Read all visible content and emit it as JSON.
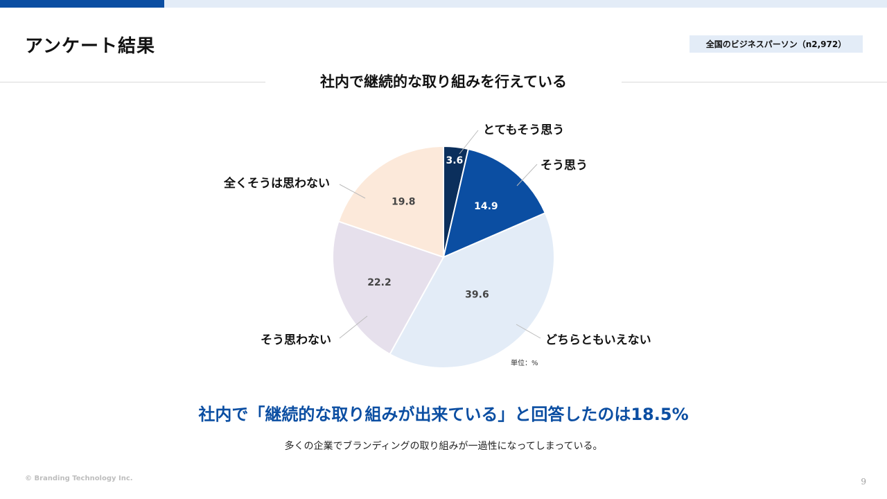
{
  "page": {
    "title": "アンケート結果",
    "sample_badge": "全国のビジネスパーソン（n2,972）",
    "headline": "社内で「継続的な取り組みが出来ている」と回答したのは18.5%",
    "subtext": "多くの企業でブランディングの取り組みが一過性になってしまっている。",
    "copyright": "© Branding Technology Inc.",
    "page_number": "9"
  },
  "chart_data": {
    "type": "pie",
    "title": "社内で継続的な取り組みを行えている",
    "unit_note": "単位：%",
    "slices": [
      {
        "label": "とてもそう思う",
        "value": 3.6,
        "color": "#0b2f5c",
        "text_color": "#ffffff"
      },
      {
        "label": "そう思う",
        "value": 14.9,
        "color": "#0b4ea2",
        "text_color": "#ffffff"
      },
      {
        "label": "どちらともいえない",
        "value": 39.6,
        "color": "#e3ecf7",
        "text_color": "#444444"
      },
      {
        "label": "そう思わない",
        "value": 22.2,
        "color": "#e6e0ec",
        "text_color": "#444444"
      },
      {
        "label": "全くそうは思わない",
        "value": 19.8,
        "color": "#fce9da",
        "text_color": "#444444"
      }
    ]
  }
}
